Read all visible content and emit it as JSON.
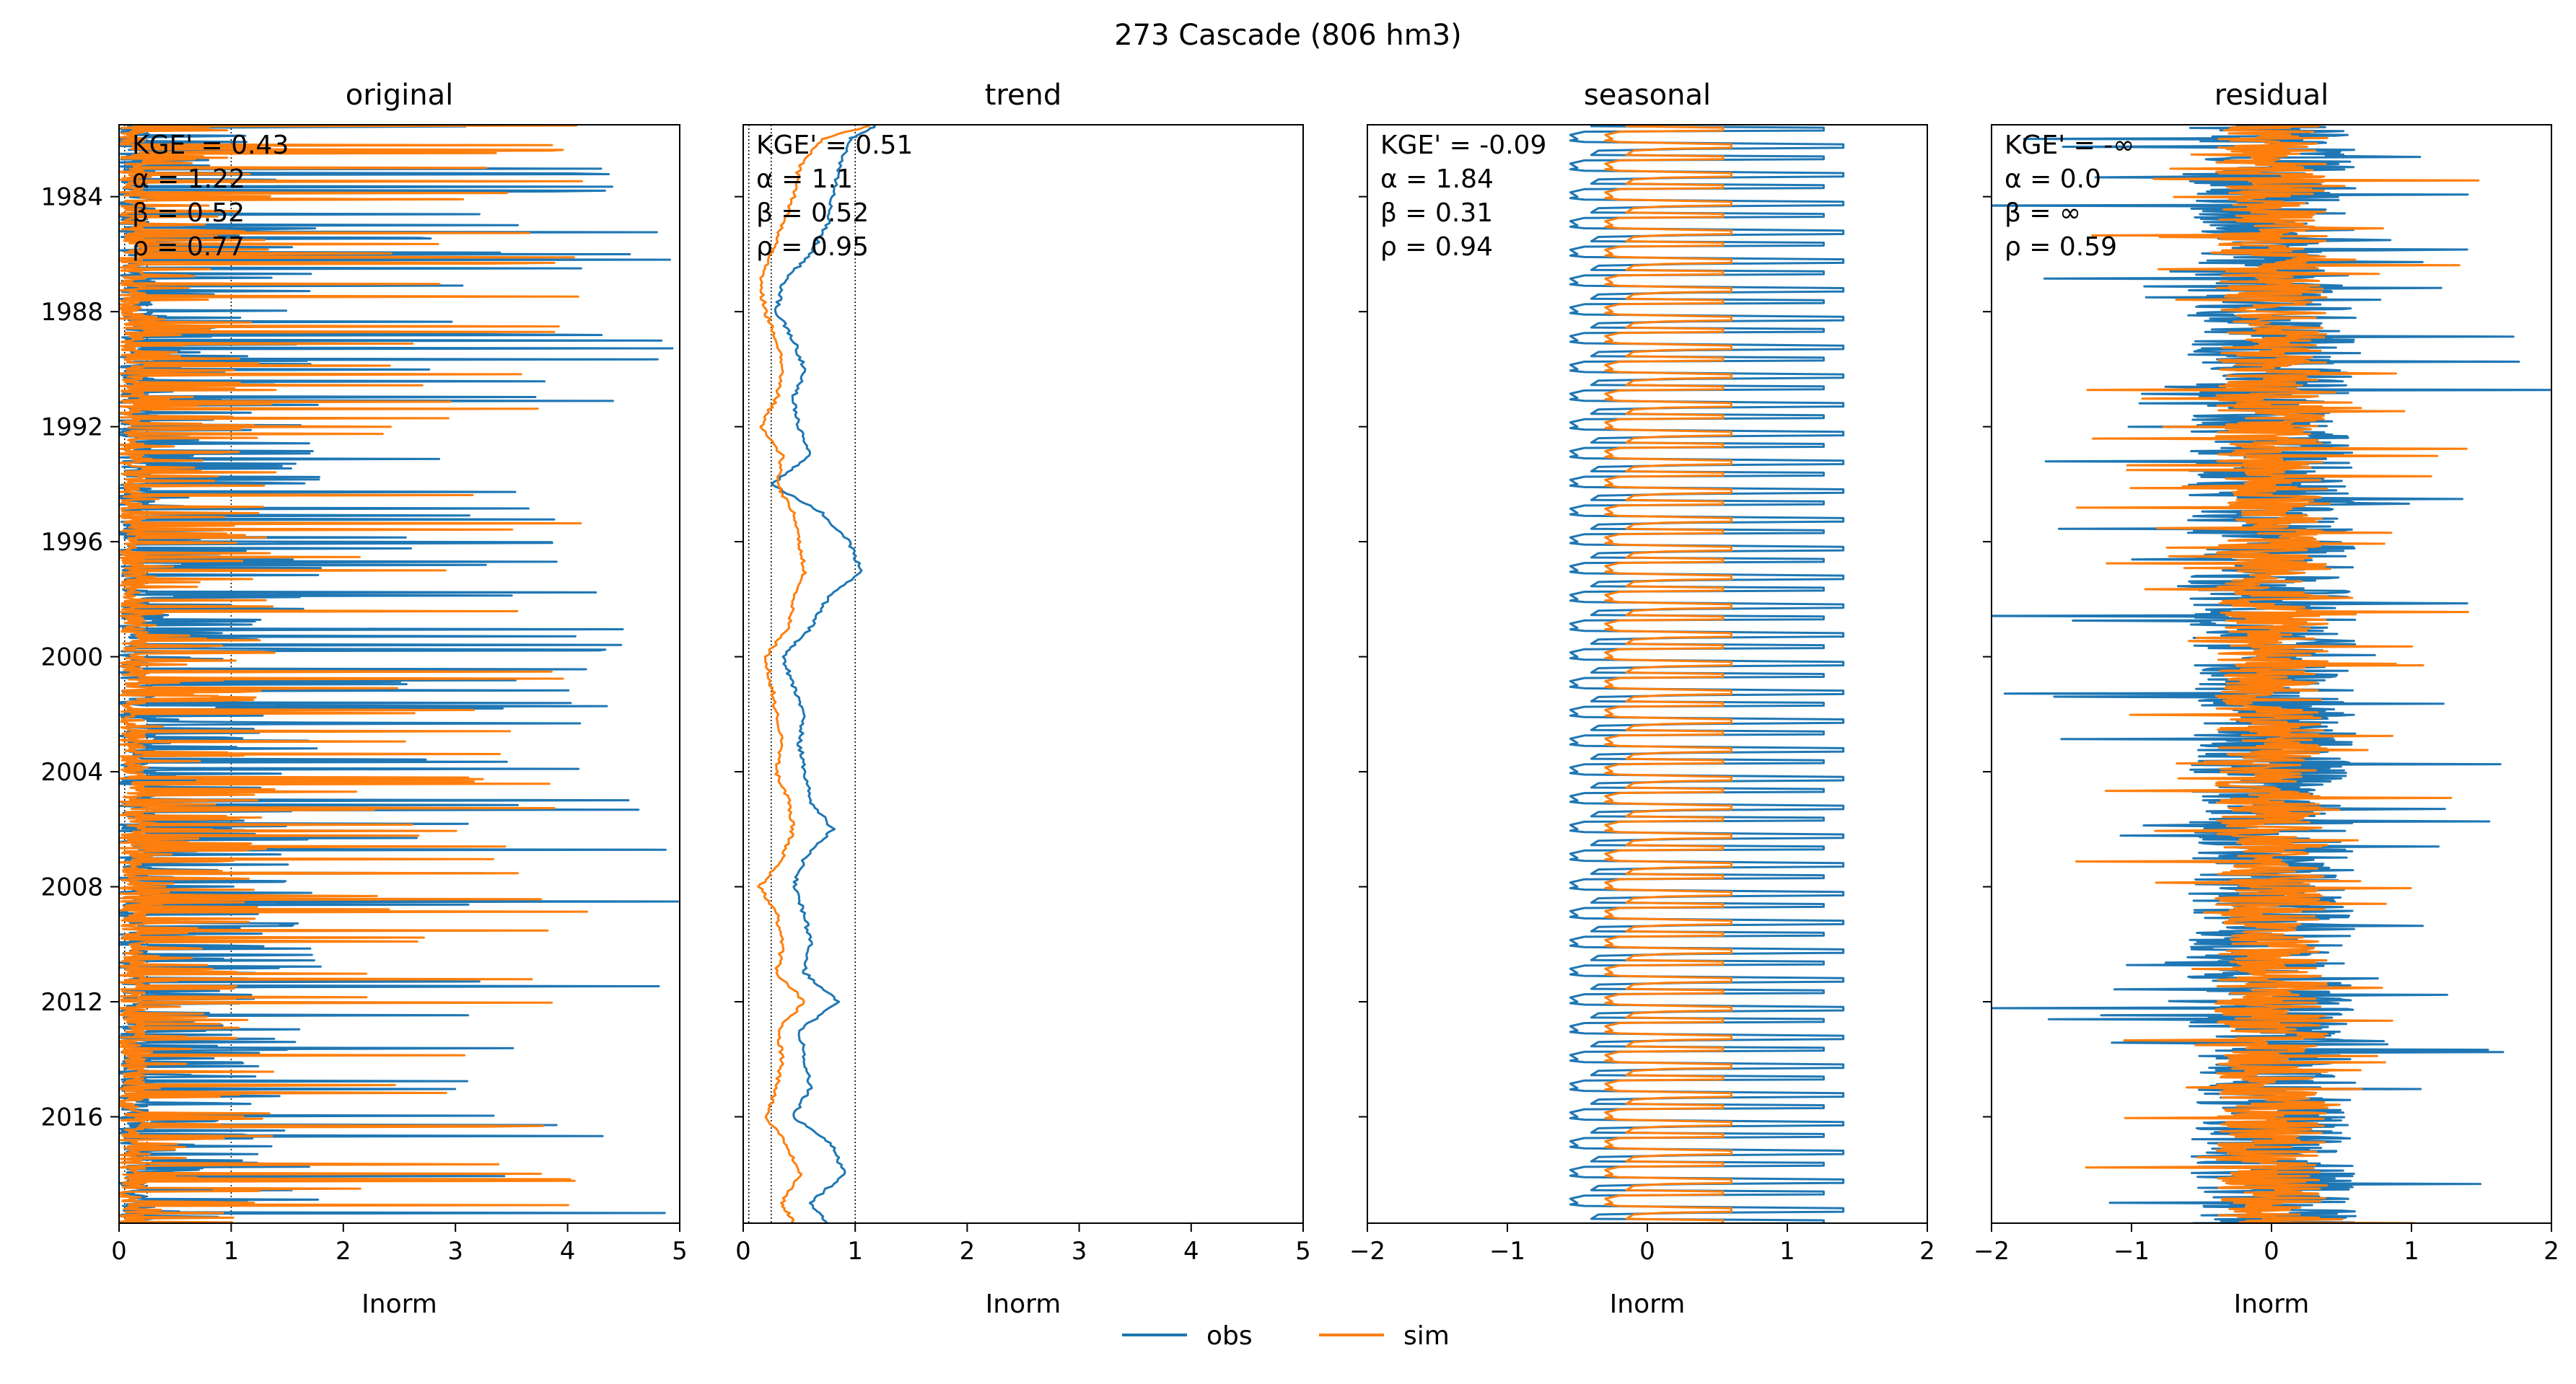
{
  "figure": {
    "suptitle": "273  Cascade (806 hm3)"
  },
  "chart_data": [
    {
      "type": "line",
      "title": "original",
      "xlabel": "Inorm",
      "ylabel": "",
      "orientation": "time-on-y",
      "xlim": [
        0,
        5
      ],
      "xticks": [
        "0",
        "1",
        "2",
        "3",
        "4",
        "5"
      ],
      "ylim": [
        1981.5,
        2019.7
      ],
      "yticks": [
        "1984",
        "1988",
        "1992",
        "1996",
        "2000",
        "2004",
        "2008",
        "2012",
        "2016"
      ],
      "reference_lines_x": [
        0.05,
        0.25,
        1.0
      ],
      "metrics": [
        "KGE' = 0.43",
        "α = 1.22",
        "β = 0.52",
        "ρ = 0.77"
      ],
      "series": [
        {
          "name": "obs",
          "color": "#1f77b4",
          "mean": 0.4,
          "spread": 0.9,
          "max": 5.0,
          "kind": "spiky"
        },
        {
          "name": "sim",
          "color": "#ff7f0e",
          "mean": 0.3,
          "spread": 0.7,
          "max": 4.2,
          "kind": "spiky"
        }
      ]
    },
    {
      "type": "line",
      "title": "trend",
      "xlabel": "Inorm",
      "ylabel": "",
      "orientation": "time-on-y",
      "xlim": [
        0,
        5
      ],
      "xticks": [
        "0",
        "1",
        "2",
        "3",
        "4",
        "5"
      ],
      "ylim": [
        1981.5,
        2019.7
      ],
      "yticks": [
        "1984",
        "1988",
        "1992",
        "1996",
        "2000",
        "2004",
        "2008",
        "2012",
        "2016"
      ],
      "reference_lines_x": [
        0.05,
        0.25,
        1.0
      ],
      "metrics": [
        "KGE' = 0.51",
        "α = 1.1",
        "β = 0.52",
        "ρ = 0.95"
      ],
      "series": [
        {
          "name": "obs",
          "color": "#1f77b4",
          "kind": "trend",
          "points": [
            [
              1981.5,
              1.2
            ],
            [
              1982,
              0.95
            ],
            [
              1983,
              0.85
            ],
            [
              1984,
              0.8
            ],
            [
              1985,
              0.75
            ],
            [
              1986,
              0.6
            ],
            [
              1987,
              0.35
            ],
            [
              1988,
              0.3
            ],
            [
              1989,
              0.45
            ],
            [
              1990,
              0.55
            ],
            [
              1991,
              0.45
            ],
            [
              1992,
              0.5
            ],
            [
              1993,
              0.6
            ],
            [
              1994,
              0.25
            ],
            [
              1995,
              0.7
            ],
            [
              1996,
              0.95
            ],
            [
              1997,
              1.05
            ],
            [
              1998,
              0.75
            ],
            [
              1999,
              0.6
            ],
            [
              2000,
              0.35
            ],
            [
              2001,
              0.45
            ],
            [
              2002,
              0.55
            ],
            [
              2003,
              0.5
            ],
            [
              2004,
              0.55
            ],
            [
              2005,
              0.6
            ],
            [
              2006,
              0.8
            ],
            [
              2007,
              0.55
            ],
            [
              2008,
              0.45
            ],
            [
              2009,
              0.55
            ],
            [
              2010,
              0.6
            ],
            [
              2011,
              0.55
            ],
            [
              2012,
              0.85
            ],
            [
              2013,
              0.5
            ],
            [
              2014,
              0.55
            ],
            [
              2015,
              0.6
            ],
            [
              2016,
              0.45
            ],
            [
              2017,
              0.8
            ],
            [
              2018,
              0.9
            ],
            [
              2019,
              0.6
            ],
            [
              2019.7,
              0.75
            ]
          ]
        },
        {
          "name": "sim",
          "color": "#ff7f0e",
          "kind": "trend",
          "points": [
            [
              1981.5,
              1.15
            ],
            [
              1982,
              0.7
            ],
            [
              1983,
              0.5
            ],
            [
              1984,
              0.45
            ],
            [
              1985,
              0.35
            ],
            [
              1986,
              0.25
            ],
            [
              1987,
              0.15
            ],
            [
              1988,
              0.2
            ],
            [
              1989,
              0.3
            ],
            [
              1990,
              0.35
            ],
            [
              1991,
              0.3
            ],
            [
              1992,
              0.15
            ],
            [
              1993,
              0.35
            ],
            [
              1994,
              0.3
            ],
            [
              1995,
              0.45
            ],
            [
              1996,
              0.5
            ],
            [
              1997,
              0.55
            ],
            [
              1998,
              0.45
            ],
            [
              1999,
              0.4
            ],
            [
              2000,
              0.2
            ],
            [
              2001,
              0.25
            ],
            [
              2002,
              0.3
            ],
            [
              2003,
              0.35
            ],
            [
              2004,
              0.3
            ],
            [
              2005,
              0.4
            ],
            [
              2006,
              0.45
            ],
            [
              2007,
              0.35
            ],
            [
              2008,
              0.15
            ],
            [
              2009,
              0.3
            ],
            [
              2010,
              0.35
            ],
            [
              2011,
              0.3
            ],
            [
              2012,
              0.55
            ],
            [
              2013,
              0.3
            ],
            [
              2014,
              0.35
            ],
            [
              2015,
              0.3
            ],
            [
              2016,
              0.2
            ],
            [
              2017,
              0.4
            ],
            [
              2018,
              0.5
            ],
            [
              2019,
              0.35
            ],
            [
              2019.7,
              0.45
            ]
          ]
        }
      ]
    },
    {
      "type": "line",
      "title": "seasonal",
      "xlabel": "Inorm",
      "ylabel": "",
      "orientation": "time-on-y",
      "xlim": [
        -2,
        2
      ],
      "xticks": [
        "−2",
        "−1",
        "0",
        "1",
        "2"
      ],
      "ylim": [
        1981.5,
        2019.7
      ],
      "yticks": [
        "1984",
        "1988",
        "1992",
        "1996",
        "2000",
        "2004",
        "2008",
        "2012",
        "2016"
      ],
      "reference_lines_x": [],
      "metrics": [
        "KGE' = -0.09",
        "α = 1.84",
        "β = 0.31",
        "ρ = 0.94"
      ],
      "series": [
        {
          "name": "obs",
          "color": "#1f77b4",
          "kind": "seasonal",
          "min": -0.55,
          "max": 1.4
        },
        {
          "name": "sim",
          "color": "#ff7f0e",
          "kind": "seasonal",
          "min": -0.3,
          "max": 0.6
        }
      ]
    },
    {
      "type": "line",
      "title": "residual",
      "xlabel": "Inorm",
      "ylabel": "",
      "orientation": "time-on-y",
      "xlim": [
        -2,
        2
      ],
      "xticks": [
        "−2",
        "−1",
        "0",
        "1",
        "2"
      ],
      "ylim": [
        1981.5,
        2019.7
      ],
      "yticks": [
        "1984",
        "1988",
        "1992",
        "1996",
        "2000",
        "2004",
        "2008",
        "2012",
        "2016"
      ],
      "reference_lines_x": [],
      "metrics": [
        "KGE' = -∞",
        "α = 0.0",
        "β = ∞",
        "ρ = 0.59"
      ],
      "series": [
        {
          "name": "obs",
          "color": "#1f77b4",
          "kind": "noise",
          "spread": 1.2
        },
        {
          "name": "sim",
          "color": "#ff7f0e",
          "kind": "noise",
          "spread": 0.8
        }
      ]
    }
  ],
  "legend": {
    "placement": "bottom-center",
    "items": [
      {
        "label": "obs",
        "color": "#1f77b4"
      },
      {
        "label": "sim",
        "color": "#ff7f0e"
      }
    ]
  }
}
